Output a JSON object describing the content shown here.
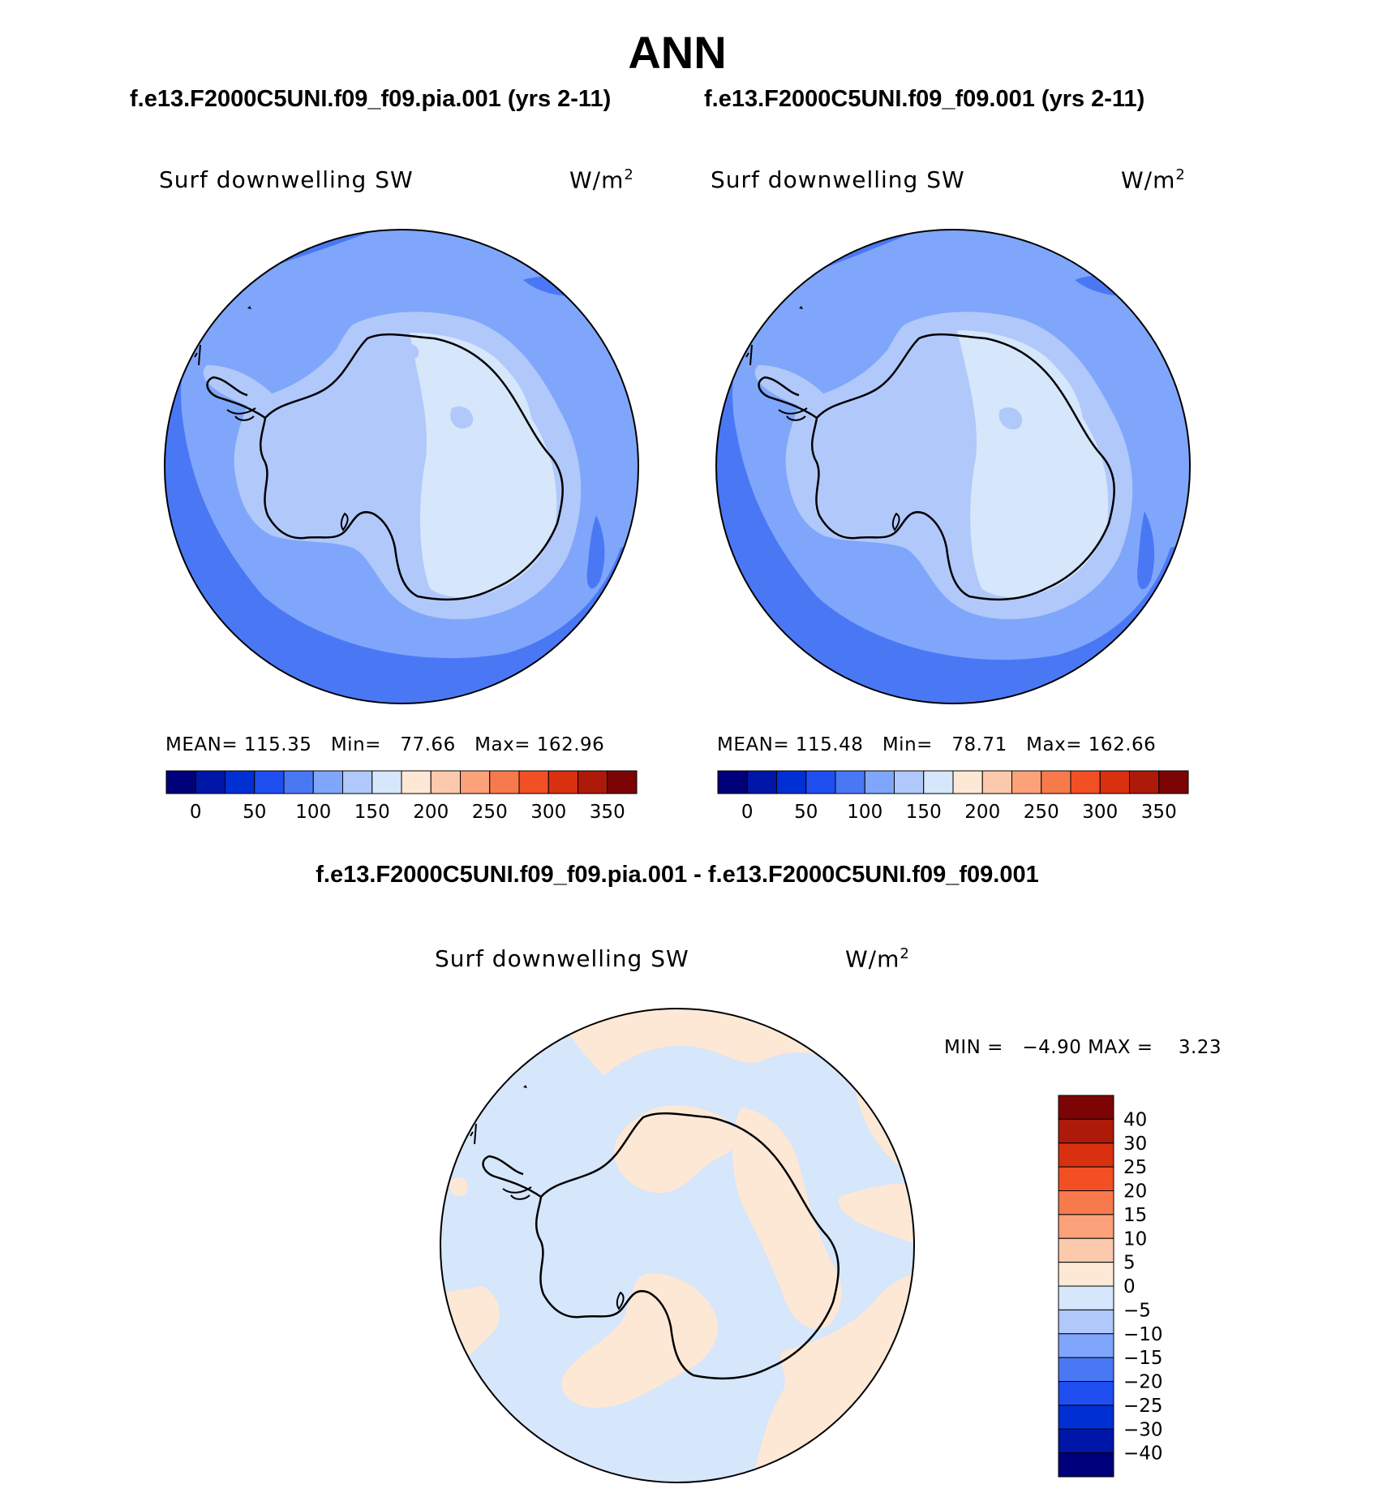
{
  "figure": {
    "title": "ANN",
    "panels": [
      {
        "case_title": "f.e13.F2000C5UNI.f09_f09.pia.001 (yrs 2-11)",
        "variable": "Surf downwelling SW",
        "units": "W/m",
        "units_exp": "2",
        "stats": {
          "mean_label": "MEAN=",
          "mean": "115.35",
          "min_label": "Min=",
          "min": "77.66",
          "max_label": "Max=",
          "max": "162.96"
        }
      },
      {
        "case_title": "f.e13.F2000C5UNI.f09_f09.001 (yrs 2-11)",
        "variable": "Surf downwelling SW",
        "units": "W/m",
        "units_exp": "2",
        "stats": {
          "mean_label": "MEAN=",
          "mean": "115.48",
          "min_label": "Min=",
          "min": "78.71",
          "max_label": "Max=",
          "max": "162.66"
        }
      }
    ],
    "difference": {
      "title": "f.e13.F2000C5UNI.f09_f09.pia.001 - f.e13.F2000C5UNI.f09_f09.001",
      "variable": "Surf downwelling SW",
      "units": "W/m",
      "units_exp": "2",
      "stats": {
        "min_label": "MIN =",
        "min": "−4.90",
        "max_label": "MAX =",
        "max": "3.23"
      }
    }
  },
  "colorbars": {
    "abs": {
      "colors": [
        "#00007a",
        "#0016a8",
        "#0030d4",
        "#1f4ef0",
        "#4a78f5",
        "#7fa6fa",
        "#b0c8fa",
        "#d6e6fb",
        "#fde8d6",
        "#fcc9ac",
        "#fba27a",
        "#f77a4d",
        "#f25024",
        "#d93010",
        "#ad1a0a",
        "#7d0404"
      ],
      "ticks": [
        "0",
        "50",
        "100",
        "150",
        "200",
        "250",
        "300",
        "350"
      ]
    },
    "diff": {
      "colors": [
        "#7d0404",
        "#ad1a0a",
        "#d93010",
        "#f25024",
        "#f77a4d",
        "#fba27a",
        "#fcc9ac",
        "#fde8d6",
        "#d6e6fb",
        "#b0c8fa",
        "#7fa6fa",
        "#4a78f5",
        "#1f4ef0",
        "#0030d4",
        "#0016a8",
        "#00007a"
      ],
      "labels": [
        "40",
        "30",
        "25",
        "20",
        "15",
        "10",
        "5",
        "0",
        "−5",
        "−10",
        "−15",
        "−20",
        "−25",
        "−30",
        "−40"
      ]
    }
  },
  "map_colors": {
    "ocean_far": "#4a78f5",
    "ocean_mid": "#7fa6fa",
    "coast": "#b0c8fa",
    "plateau": "#d6e6fb",
    "diff_neg": "#d6e6fb",
    "diff_pos": "#fde8d6"
  }
}
